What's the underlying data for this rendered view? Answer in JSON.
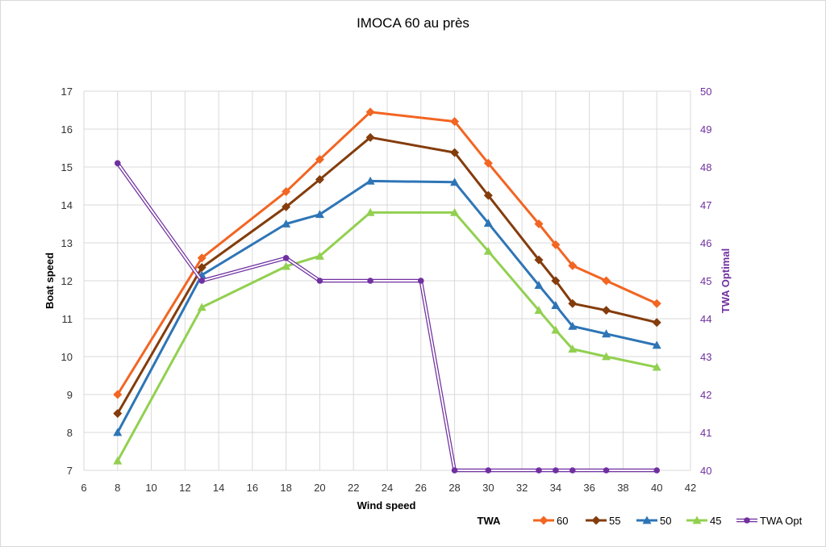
{
  "chart_data": {
    "type": "line",
    "title": "IMOCA 60 au près",
    "xlabel": "Wind speed",
    "ylabel": "Boat speed",
    "y2label": "TWA Optimal",
    "xlim": [
      6,
      42
    ],
    "ylim": [
      7,
      17
    ],
    "y2lim": [
      40,
      50
    ],
    "xticks": [
      6,
      8,
      10,
      12,
      14,
      16,
      18,
      20,
      22,
      24,
      26,
      28,
      30,
      32,
      34,
      36,
      38,
      40,
      42
    ],
    "yticks": [
      7,
      8,
      9,
      10,
      11,
      12,
      13,
      14,
      15,
      16,
      17
    ],
    "y2ticks": [
      40,
      41,
      42,
      43,
      44,
      45,
      46,
      47,
      48,
      49,
      50
    ],
    "grid": true,
    "legend_title": "TWA",
    "legend_position": "bottom-right",
    "series": [
      {
        "name": "60",
        "axis": "left",
        "color": "#f26522",
        "marker": "diamond",
        "x": [
          8,
          13,
          18,
          20,
          23,
          28,
          30,
          33,
          34,
          35,
          37,
          40
        ],
        "values": [
          9.0,
          12.6,
          14.35,
          15.2,
          16.45,
          16.2,
          15.1,
          13.5,
          12.95,
          12.4,
          12.0,
          11.4
        ]
      },
      {
        "name": "55",
        "axis": "left",
        "color": "#843c0c",
        "marker": "diamond",
        "x": [
          8,
          13,
          18,
          20,
          23,
          28,
          30,
          33,
          34,
          35,
          37,
          40
        ],
        "values": [
          8.5,
          12.35,
          13.95,
          14.67,
          15.78,
          15.38,
          14.25,
          12.55,
          12.0,
          11.4,
          11.22,
          10.9
        ]
      },
      {
        "name": "50",
        "axis": "left",
        "color": "#2e75b6",
        "marker": "triangle",
        "x": [
          8,
          13,
          18,
          20,
          23,
          28,
          30,
          33,
          34,
          35,
          37,
          40
        ],
        "values": [
          8.0,
          12.15,
          13.5,
          13.75,
          14.63,
          14.6,
          13.52,
          11.88,
          11.35,
          10.8,
          10.6,
          10.3
        ]
      },
      {
        "name": "45",
        "axis": "left",
        "color": "#92d050",
        "marker": "triangle",
        "x": [
          8,
          13,
          18,
          20,
          23,
          28,
          30,
          33,
          34,
          35,
          37,
          40
        ],
        "values": [
          7.25,
          11.3,
          12.38,
          12.65,
          13.8,
          13.8,
          12.78,
          11.22,
          10.7,
          10.2,
          10.0,
          9.72
        ]
      },
      {
        "name": "TWA Opt",
        "axis": "right",
        "color": "#7030a0",
        "marker": "circle",
        "x": [
          8,
          13,
          18,
          20,
          23,
          26,
          28,
          30,
          33,
          34,
          35,
          37,
          40
        ],
        "values": [
          48.1,
          45.0,
          45.6,
          45.0,
          45.0,
          45.0,
          40.0,
          40.0,
          40.0,
          40.0,
          40.0,
          40.0,
          40.0
        ]
      }
    ]
  }
}
